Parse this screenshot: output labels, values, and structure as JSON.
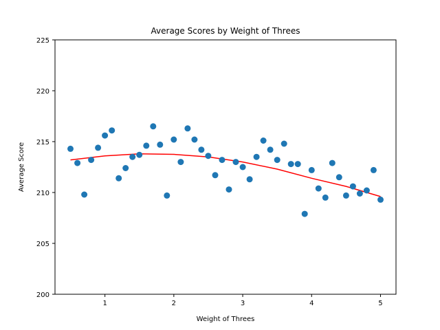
{
  "chart_data": {
    "type": "scatter",
    "title": "Average Scores by Weight of Threes",
    "xlabel": "Weight of Threes",
    "ylabel": "Average Score",
    "xlim": [
      0.275,
      5.225
    ],
    "ylim": [
      200,
      225
    ],
    "xticks": [
      1,
      2,
      3,
      4,
      5
    ],
    "yticks": [
      200,
      205,
      210,
      215,
      220,
      225
    ],
    "grid": false,
    "colors": {
      "points": "#1f77b4",
      "fit": "#ff0000"
    },
    "series": [
      {
        "kind": "points",
        "x": [
          0.5,
          0.6,
          0.7,
          0.8,
          0.9,
          1.0,
          1.1,
          1.2,
          1.3,
          1.4,
          1.5,
          1.6,
          1.7,
          1.8,
          1.9,
          2.0,
          2.1,
          2.2,
          2.3,
          2.4,
          2.5,
          2.6,
          2.7,
          2.8,
          2.9,
          3.0,
          3.1,
          3.2,
          3.3,
          3.4,
          3.5,
          3.6,
          3.7,
          3.8,
          3.9,
          4.0,
          4.1,
          4.2,
          4.3,
          4.4,
          4.5,
          4.6,
          4.7,
          4.8,
          4.9,
          5.0
        ],
        "y": [
          214.3,
          212.9,
          209.8,
          213.2,
          214.4,
          215.6,
          216.1,
          211.4,
          212.4,
          213.5,
          213.7,
          214.6,
          216.5,
          214.7,
          209.7,
          215.2,
          213.0,
          216.3,
          215.2,
          214.2,
          213.6,
          211.7,
          213.2,
          210.3,
          213.0,
          212.5,
          211.3,
          213.5,
          215.1,
          214.2,
          213.2,
          214.8,
          212.8,
          212.8,
          207.9,
          212.2,
          210.4,
          209.5,
          212.9,
          211.5,
          209.7,
          210.6,
          209.9,
          210.2,
          212.2,
          209.3
        ]
      },
      {
        "kind": "fit",
        "x": [
          0.5,
          1.0,
          1.5,
          2.0,
          2.5,
          3.0,
          3.5,
          4.0,
          4.5,
          5.0
        ],
        "y": [
          213.2,
          213.6,
          213.8,
          213.75,
          213.5,
          213.0,
          212.3,
          211.4,
          210.6,
          209.6
        ]
      }
    ]
  }
}
